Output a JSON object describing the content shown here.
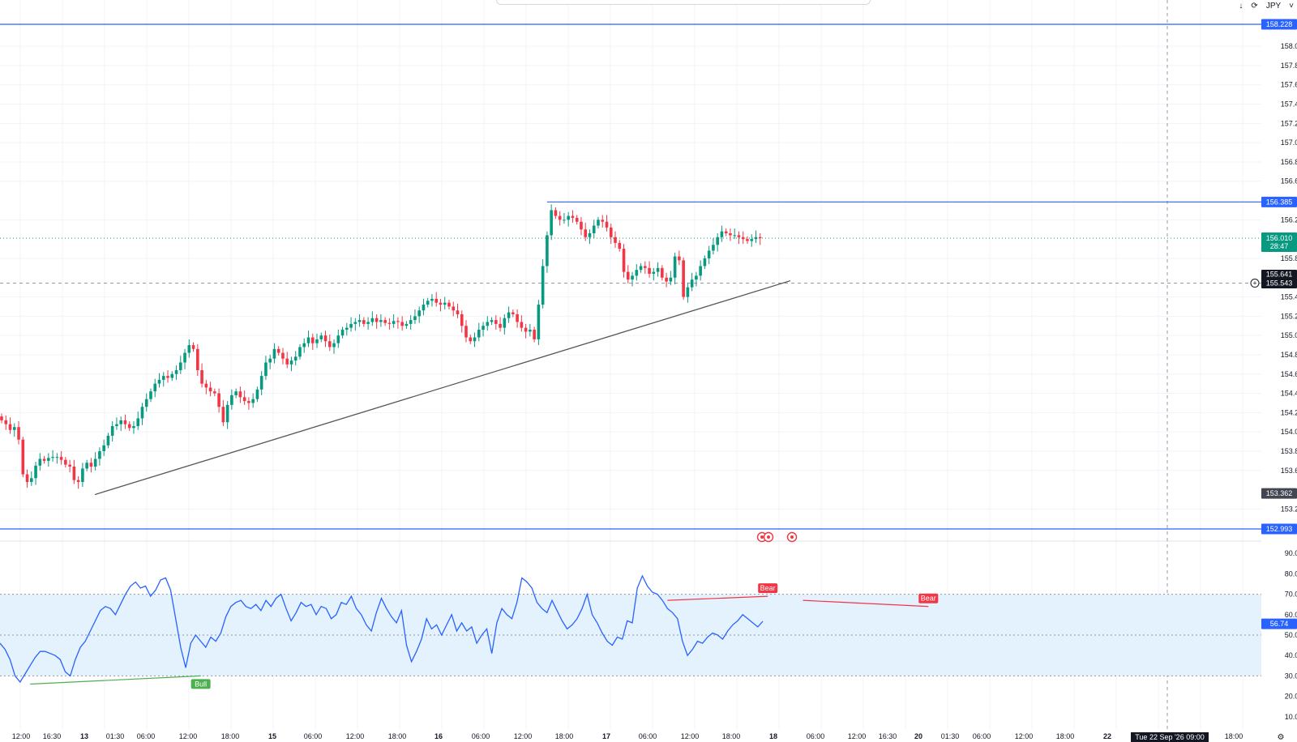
{
  "toolbar": {
    "download_icon": "download-icon",
    "refresh_icon": "refresh-icon",
    "currency": "JPY",
    "currency_icon": "chevron-down-icon"
  },
  "colors": {
    "up": "#089981",
    "down": "#f23645",
    "hline": "#2962ff",
    "rsi_line": "#2962ff",
    "rsi_band": "#e3f2fd",
    "trendline": "#555555",
    "last_price_bg": "#089981",
    "crosshair_bg": "#131722"
  },
  "chart_data": [
    {
      "type": "candlestick",
      "y_ticks": [
        "158.000",
        "157.800",
        "157.600",
        "157.400",
        "157.200",
        "157.000",
        "156.800",
        "156.600",
        "156.200",
        "155.800",
        "155.400",
        "155.200",
        "155.000",
        "154.800",
        "154.600",
        "154.400",
        "154.200",
        "154.000",
        "153.800",
        "153.600",
        "153.200"
      ],
      "ylim": [
        152.9,
        158.36
      ],
      "x_ticks": [
        "12:00",
        "16:30",
        "13",
        "01:30",
        "06:00",
        "12:00",
        "18:00",
        "15",
        "06:00",
        "12:00",
        "18:00",
        "16",
        "06:00",
        "12:00",
        "18:00",
        "17",
        "06:00",
        "12:00",
        "18:00",
        "18",
        "06:00",
        "12:00",
        "16:30",
        "20",
        "01:30",
        "06:00",
        "12:00",
        "18:00",
        "22",
        "18:00"
      ],
      "x_time_label": "Tue 22 Sep '26  09:00",
      "price_labels": {
        "hline_top": "158.228",
        "hline_mid": "156.385",
        "hline_bottom": "152.993",
        "last_price": "156.010",
        "countdown": "28:47",
        "crosshair": "155.543",
        "trend_value": "155.641",
        "low_value": "153.362"
      },
      "horizontal_lines": [
        158.228,
        156.385,
        152.993
      ],
      "last_price": 156.01,
      "crosshair_price": 155.543,
      "trendline": [
        [
          0,
          153.4
        ],
        [
          183,
          155.61
        ]
      ],
      "close": [
        154.12,
        154.08,
        154.02,
        154.05,
        153.92,
        153.56,
        153.48,
        153.52,
        153.65,
        153.72,
        153.7,
        153.73,
        153.74,
        153.74,
        153.71,
        153.66,
        153.64,
        153.5,
        153.48,
        153.62,
        153.68,
        153.64,
        153.72,
        153.8,
        153.86,
        153.96,
        154.06,
        154.08,
        154.12,
        154.08,
        154.04,
        154.06,
        154.14,
        154.26,
        154.34,
        154.42,
        154.5,
        154.54,
        154.58,
        154.56,
        154.6,
        154.64,
        154.72,
        154.82,
        154.9,
        154.86,
        154.64,
        154.5,
        154.46,
        154.42,
        154.4,
        154.26,
        154.1,
        154.28,
        154.38,
        154.42,
        154.36,
        154.32,
        154.3,
        154.34,
        154.44,
        154.58,
        154.72,
        154.76,
        154.86,
        154.82,
        154.76,
        154.7,
        154.74,
        154.78,
        154.88,
        154.92,
        154.98,
        154.92,
        154.96,
        155.0,
        154.94,
        154.88,
        154.92,
        155.0,
        155.06,
        155.08,
        155.12,
        155.14,
        155.16,
        155.12,
        155.14,
        155.18,
        155.14,
        155.16,
        155.13,
        155.12,
        155.15,
        155.14,
        155.1,
        155.12,
        155.16,
        155.2,
        155.26,
        155.32,
        155.36,
        155.38,
        155.34,
        155.32,
        155.34,
        155.3,
        155.26,
        155.22,
        155.1,
        154.98,
        154.94,
        154.98,
        155.06,
        155.1,
        155.14,
        155.16,
        155.12,
        155.08,
        155.18,
        155.24,
        155.22,
        155.14,
        155.08,
        155.04,
        155.06,
        154.96,
        155.32,
        155.72,
        156.04,
        156.3,
        156.24,
        156.2,
        156.2,
        156.24,
        156.22,
        156.18,
        156.1,
        156.02,
        156.06,
        156.14,
        156.2,
        156.18,
        156.12,
        156.02,
        155.96,
        155.9,
        155.66,
        155.58,
        155.62,
        155.68,
        155.72,
        155.7,
        155.64,
        155.66,
        155.7,
        155.6,
        155.56,
        155.6,
        155.82,
        155.78,
        155.4,
        155.5,
        155.58,
        155.62,
        155.72,
        155.8,
        155.88,
        155.94,
        156.02,
        156.08,
        156.06,
        156.04,
        156.04,
        156.02,
        156.0,
        155.98,
        156.0,
        156.02,
        156.01
      ],
      "rsi": {
        "ylim": [
          0,
          100
        ],
        "y_ticks": [
          "90.00",
          "80.00",
          "70.00",
          "60.00",
          "50.00",
          "40.00",
          "30.00",
          "20.00",
          "10.00"
        ],
        "levels": [
          70,
          50,
          30
        ],
        "value_label": "56.74",
        "values": [
          46,
          43,
          38,
          30,
          27,
          31,
          35,
          39,
          42,
          42,
          41,
          40,
          38,
          32,
          30,
          38,
          44,
          47,
          52,
          57,
          62,
          64,
          63,
          60,
          65,
          70,
          74,
          76,
          73,
          74,
          69,
          72,
          77,
          78,
          72,
          58,
          44,
          34,
          46,
          50,
          47,
          44,
          49,
          47,
          51,
          59,
          64,
          66,
          67,
          64,
          63,
          65,
          62,
          67,
          64,
          68,
          70,
          63,
          57,
          61,
          66,
          64,
          65,
          60,
          64,
          63,
          58,
          60,
          66,
          65,
          69,
          63,
          60,
          55,
          52,
          61,
          68,
          63,
          59,
          56,
          62,
          45,
          37,
          42,
          48,
          58,
          53,
          55,
          50,
          55,
          60,
          52,
          56,
          52,
          54,
          46,
          50,
          53,
          41,
          56,
          63,
          60,
          58,
          66,
          78,
          76,
          73,
          66,
          63,
          61,
          67,
          62,
          57,
          53,
          55,
          58,
          63,
          70,
          60,
          56,
          51,
          47,
          45,
          49,
          48,
          57,
          56,
          73,
          79,
          74,
          71,
          70,
          67,
          63,
          61,
          58,
          47,
          40,
          43,
          47,
          46,
          49,
          51,
          50,
          48,
          52,
          55,
          57,
          60,
          58,
          56,
          54,
          56.74
        ],
        "divergences": [
          {
            "label": "Bull",
            "type": "bull",
            "from_index": 6,
            "to_index": 40,
            "from_value": 26,
            "to_value": 30
          },
          {
            "label": "Bear",
            "type": "bear",
            "from_index": 133,
            "to_index": 153,
            "from_value": 67,
            "to_value": 69
          },
          {
            "label": "Bear",
            "type": "bear",
            "from_index": 160,
            "to_index": 185,
            "from_value": 67,
            "to_value": 64
          }
        ]
      }
    }
  ]
}
